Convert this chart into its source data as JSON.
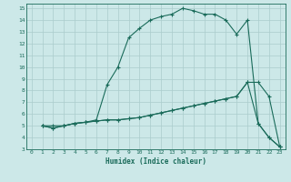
{
  "xlabel": "Humidex (Indice chaleur)",
  "bg_color": "#cce8e8",
  "grid_color": "#aacccc",
  "line_color": "#1a6b5a",
  "xlim": [
    -0.5,
    23.5
  ],
  "ylim": [
    3,
    15.4
  ],
  "xticks": [
    0,
    1,
    2,
    3,
    4,
    5,
    6,
    7,
    8,
    9,
    10,
    11,
    12,
    13,
    14,
    15,
    16,
    17,
    18,
    19,
    20,
    21,
    22,
    23
  ],
  "yticks": [
    3,
    4,
    5,
    6,
    7,
    8,
    9,
    10,
    11,
    12,
    13,
    14,
    15
  ],
  "line1_x": [
    1,
    2,
    3,
    4,
    5,
    6,
    7,
    8,
    9,
    10,
    11,
    12,
    13,
    14,
    15,
    16,
    17,
    18,
    19,
    20,
    21,
    22,
    23
  ],
  "line1_y": [
    5.0,
    5.0,
    5.0,
    5.2,
    5.3,
    5.5,
    8.5,
    10.0,
    12.5,
    13.3,
    14.0,
    14.3,
    14.5,
    15.0,
    14.8,
    14.5,
    14.5,
    14.0,
    12.8,
    14.0,
    5.2,
    4.0,
    3.2
  ],
  "line2_x": [
    1,
    2,
    3,
    4,
    5,
    6,
    7,
    8,
    9,
    10,
    11,
    12,
    13,
    14,
    15,
    16,
    17,
    18,
    19,
    20,
    21,
    22,
    23
  ],
  "line2_y": [
    5.0,
    4.8,
    5.0,
    5.2,
    5.3,
    5.4,
    5.5,
    5.5,
    5.6,
    5.7,
    5.9,
    6.1,
    6.3,
    6.5,
    6.7,
    6.9,
    7.1,
    7.3,
    7.5,
    8.7,
    5.2,
    4.0,
    3.2
  ],
  "line3_x": [
    1,
    2,
    3,
    4,
    5,
    6,
    7,
    8,
    9,
    10,
    11,
    12,
    13,
    14,
    15,
    16,
    17,
    18,
    19,
    20,
    21,
    22,
    23
  ],
  "line3_y": [
    5.0,
    4.8,
    5.0,
    5.2,
    5.3,
    5.4,
    5.5,
    5.5,
    5.6,
    5.7,
    5.9,
    6.1,
    6.3,
    6.5,
    6.7,
    6.9,
    7.1,
    7.3,
    7.5,
    8.7,
    8.7,
    7.5,
    3.2
  ]
}
